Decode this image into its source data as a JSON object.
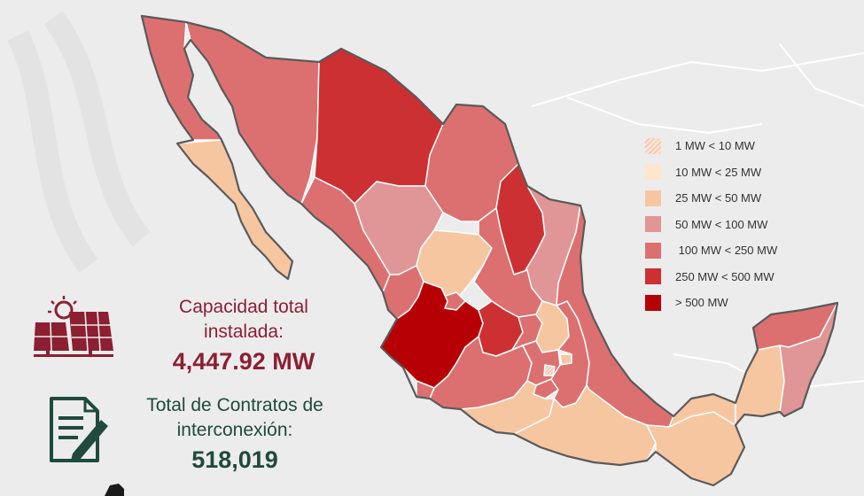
{
  "legend": {
    "items": [
      {
        "label": "1 MW < 10 MW",
        "color": "#f9d8c8",
        "pattern": "hatched"
      },
      {
        "label": "10 MW < 25 MW",
        "color": "#fce6cc"
      },
      {
        "label": "25 MW < 50 MW",
        "color": "#f6c6a1"
      },
      {
        "label": "50 MW < 100 MW",
        "color": "#e09696"
      },
      {
        "label": " 100 MW < 250 MW",
        "color": "#dc7070"
      },
      {
        "label": "250 MW < 500 MW",
        "color": "#cc3032"
      },
      {
        "label": "> 500 MW",
        "color": "#b70005"
      }
    ]
  },
  "capacity": {
    "label_line1": "Capacidad total",
    "label_line2": "instalada:",
    "value": "4,447.92 MW",
    "label_color": "#8c1f32",
    "value_color": "#8c1f32",
    "icon": "solar-panel-icon"
  },
  "contracts": {
    "label_line1": "Total de Contratos de",
    "label_line2": "interconexión:",
    "value": "518,019",
    "label_color": "#1f4a3d",
    "value_color": "#1f4a3d",
    "icon": "contract-document-icon"
  },
  "colors": {
    "background": "#ececec",
    "border": "#ffffff",
    "outline": "#5a5a5a"
  }
}
